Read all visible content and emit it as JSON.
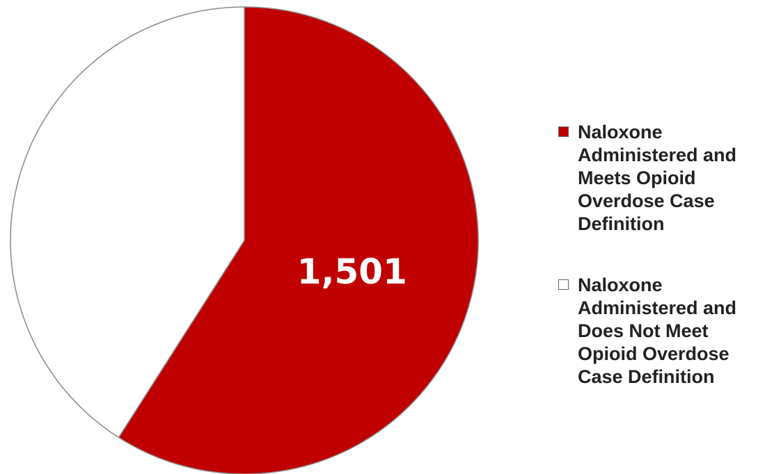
{
  "chart_data": {
    "type": "pie",
    "title": "",
    "slices": [
      {
        "name": "Naloxone Administered and Meets Opioid Overdose Case Definition",
        "value": 1501,
        "label": "1,501",
        "color": "#C00000"
      },
      {
        "name": "Naloxone Administered and Does Not Meet Opioid Overdose Case Definition",
        "value": 1042,
        "label": "",
        "color": "#FFFFFF"
      }
    ],
    "start_angle_deg": 0,
    "direction": "clockwise",
    "legend_position": "right",
    "outline_color": "#8A8A8A"
  },
  "legend": {
    "items": [
      {
        "label": "Naloxone Administered and Meets Opioid Overdose Case Definition",
        "color": "#C00000"
      },
      {
        "label": "Naloxone Administered and Does Not Meet Opioid Overdose Case Definition",
        "color": "#FFFFFF"
      }
    ]
  }
}
